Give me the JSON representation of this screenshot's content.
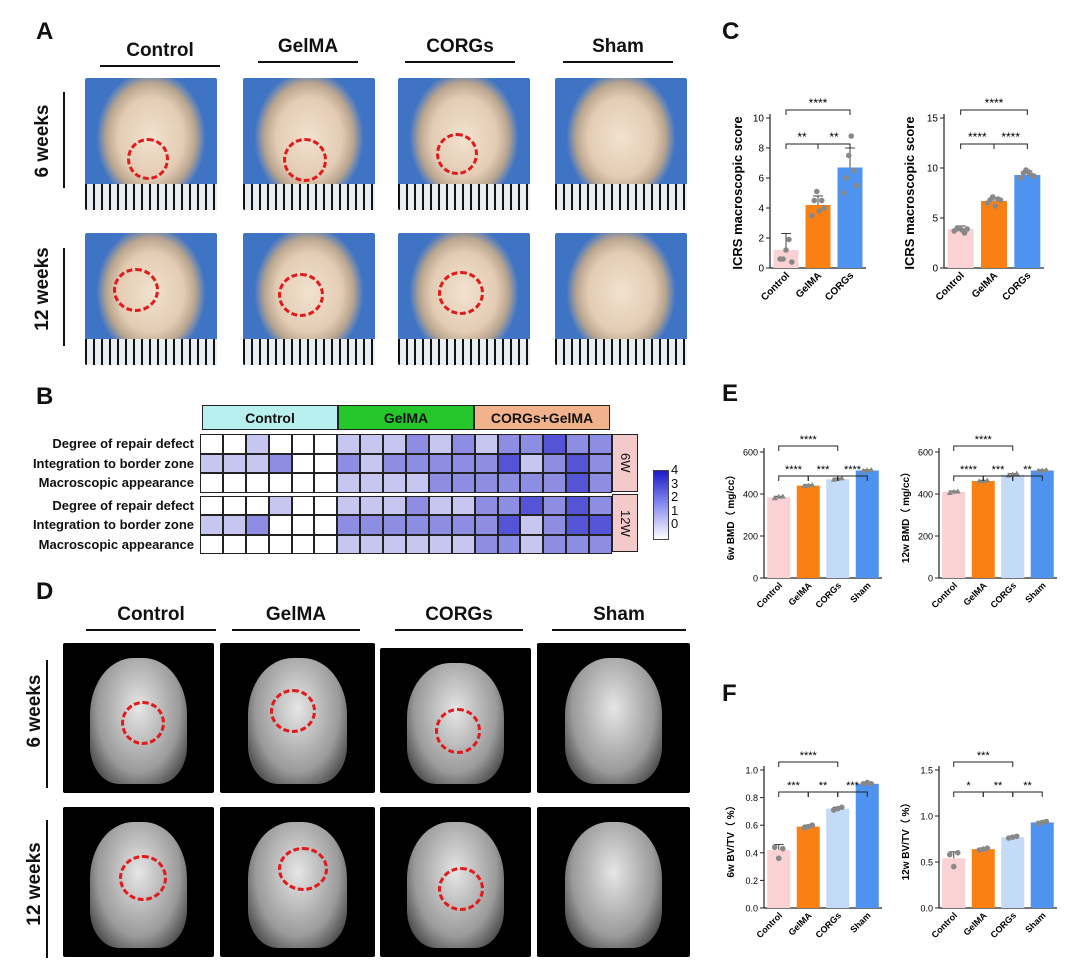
{
  "panels": {
    "a": "A",
    "b": "B",
    "c": "C",
    "d": "D",
    "e": "E",
    "f": "F"
  },
  "groups": [
    "Control",
    "GelMA",
    "CORGs",
    "Sham"
  ],
  "timepoints": [
    "6 weeks",
    "12 weeks"
  ],
  "heatmap": {
    "groups": [
      "Control",
      "GelMA",
      "CORGs+GelMA"
    ],
    "group_colors": [
      "#b7f0ee",
      "#25c72a",
      "#f2b28c"
    ],
    "rows": [
      "Degree of repair defect",
      "Integration to border zone",
      "Macroscopic appearance",
      "Degree of repair defect",
      "Integration to border zone",
      "Macroscopic appearance"
    ],
    "blocks": [
      "6W",
      "12W"
    ],
    "legend_ticks": [
      "4",
      "3",
      "2",
      "1",
      "0"
    ],
    "values": [
      [
        0,
        0,
        1,
        0,
        0,
        0,
        1,
        1,
        1,
        2,
        1,
        2,
        1,
        2,
        2,
        3,
        2,
        2
      ],
      [
        1,
        1,
        1,
        2,
        0,
        0,
        2,
        1,
        2,
        2,
        2,
        2,
        2,
        3,
        1,
        2,
        3,
        2
      ],
      [
        0,
        0,
        0,
        0,
        0,
        0,
        1,
        1,
        1,
        1,
        2,
        2,
        2,
        2,
        2,
        2,
        3,
        2
      ],
      [
        0,
        0,
        0,
        1,
        0,
        0,
        1,
        1,
        1,
        2,
        1,
        1,
        2,
        2,
        3,
        2,
        3,
        2
      ],
      [
        1,
        1,
        2,
        0,
        0,
        0,
        2,
        2,
        2,
        2,
        2,
        2,
        2,
        3,
        1,
        2,
        3,
        3
      ],
      [
        0,
        0,
        0,
        0,
        0,
        0,
        1,
        1,
        1,
        1,
        1,
        1,
        2,
        2,
        1,
        2,
        2,
        2
      ]
    ]
  },
  "chart_data": [
    {
      "id": "c1",
      "type": "bar",
      "categories": [
        "Control",
        "GelMA",
        "CORGs"
      ],
      "values": [
        1.2,
        4.2,
        6.7
      ],
      "errors": [
        1.1,
        0.6,
        1.3
      ],
      "points": [
        [
          0.6,
          0.6,
          1.2,
          1.9,
          0.4
        ],
        [
          3.5,
          4.5,
          5.1,
          3.8,
          4.5,
          4.0
        ],
        [
          5.0,
          6.0,
          7.5,
          8.8,
          6.5,
          5.5
        ]
      ],
      "colors": [
        "#fbd2d4",
        "#fb8013",
        "#4f93f0"
      ],
      "ylabel": "ICRS macroscopic score",
      "ylim": [
        0,
        10
      ],
      "yticks": [
        0,
        2,
        4,
        6,
        8,
        10
      ],
      "sig": [
        {
          "a": 0,
          "b": 1,
          "label": "**",
          "level": 1
        },
        {
          "a": 1,
          "b": 2,
          "label": "**",
          "level": 1
        },
        {
          "a": 0,
          "b": 2,
          "label": "****",
          "level": 2
        }
      ]
    },
    {
      "id": "c2",
      "type": "bar",
      "categories": [
        "Control",
        "GelMA",
        "CORGs"
      ],
      "values": [
        3.9,
        6.7,
        9.3
      ],
      "errors": [
        0.3,
        0.3,
        0.4
      ],
      "points": [
        [
          3.7,
          3.9,
          4.0,
          3.8,
          3.5,
          3.9
        ],
        [
          6.5,
          6.8,
          7.1,
          6.2,
          6.9,
          6.8
        ],
        [
          9.0,
          9.5,
          9.8,
          9.6,
          9.3,
          9.2
        ]
      ],
      "colors": [
        "#fbd2d4",
        "#fb8013",
        "#4f93f0"
      ],
      "ylabel": "ICRS macroscopic score",
      "ylim": [
        0,
        15
      ],
      "yticks": [
        0,
        5,
        10,
        15
      ],
      "sig": [
        {
          "a": 0,
          "b": 1,
          "label": "****",
          "level": 1
        },
        {
          "a": 1,
          "b": 2,
          "label": "****",
          "level": 1
        },
        {
          "a": 0,
          "b": 2,
          "label": "****",
          "level": 2
        }
      ]
    },
    {
      "id": "e1",
      "type": "bar",
      "categories": [
        "Control",
        "GelMA",
        "CORGs",
        "Sham"
      ],
      "values": [
        385,
        440,
        470,
        512
      ],
      "errors": [
        4,
        4,
        5,
        3
      ],
      "points": [
        [
          380,
          387,
          388
        ],
        [
          438,
          441,
          442
        ],
        [
          468,
          472,
          475
        ],
        [
          510,
          513,
          514
        ]
      ],
      "colors": [
        "#fbd2d4",
        "#fb8013",
        "#c4dbf8",
        "#4f93f0"
      ],
      "ylabel": "6w BMD（ mg/cc）",
      "ylim": [
        0,
        600
      ],
      "yticks": [
        0,
        200,
        400,
        600
      ],
      "sig": [
        {
          "a": 0,
          "b": 1,
          "label": "****",
          "level": 1
        },
        {
          "a": 1,
          "b": 2,
          "label": "***",
          "level": 1
        },
        {
          "a": 2,
          "b": 3,
          "label": "****",
          "level": 1
        },
        {
          "a": 0,
          "b": 2,
          "label": "****",
          "level": 2
        }
      ]
    },
    {
      "id": "e2",
      "type": "bar",
      "categories": [
        "Control",
        "GelMA",
        "CORGs",
        "Sham"
      ],
      "values": [
        410,
        462,
        492,
        512
      ],
      "errors": [
        4,
        3,
        5,
        3
      ],
      "points": [
        [
          405,
          411,
          412
        ],
        [
          460,
          462,
          464
        ],
        [
          488,
          493,
          497
        ],
        [
          510,
          512,
          514
        ]
      ],
      "colors": [
        "#fbd2d4",
        "#fb8013",
        "#c4dbf8",
        "#4f93f0"
      ],
      "ylabel": "12w BMD（ mg/cc）",
      "ylim": [
        0,
        600
      ],
      "yticks": [
        0,
        200,
        400,
        600
      ],
      "sig": [
        {
          "a": 0,
          "b": 1,
          "label": "****",
          "level": 1
        },
        {
          "a": 1,
          "b": 2,
          "label": "***",
          "level": 1
        },
        {
          "a": 2,
          "b": 3,
          "label": "**",
          "level": 1
        },
        {
          "a": 0,
          "b": 2,
          "label": "****",
          "level": 2
        }
      ]
    },
    {
      "id": "f1",
      "type": "bar",
      "categories": [
        "Control",
        "GelMA",
        "CORGs",
        "Sham"
      ],
      "values": [
        0.42,
        0.59,
        0.72,
        0.9
      ],
      "errors": [
        0.04,
        0.01,
        0.01,
        0.01
      ],
      "points": [
        [
          0.44,
          0.36,
          0.43
        ],
        [
          0.58,
          0.59,
          0.6
        ],
        [
          0.71,
          0.72,
          0.73
        ],
        [
          0.9,
          0.91,
          0.9
        ]
      ],
      "colors": [
        "#fbd2d4",
        "#fb8013",
        "#c4dbf8",
        "#4f93f0"
      ],
      "ylabel": "6w BV/TV（ %）",
      "ylim": [
        0,
        1.0
      ],
      "yticks": [
        0,
        0.2,
        0.4,
        0.6,
        0.8,
        1.0
      ],
      "ytick_labels": [
        "0.0",
        "0.2",
        "0.4",
        "0.6",
        "0.8",
        "1.0"
      ],
      "sig": [
        {
          "a": 0,
          "b": 1,
          "label": "***",
          "level": 1
        },
        {
          "a": 1,
          "b": 2,
          "label": "**",
          "level": 1
        },
        {
          "a": 2,
          "b": 3,
          "label": "***",
          "level": 1
        },
        {
          "a": 0,
          "b": 2,
          "label": "****",
          "level": 2
        }
      ]
    },
    {
      "id": "f2",
      "type": "bar",
      "categories": [
        "Control",
        "GelMA",
        "CORGs",
        "Sham"
      ],
      "values": [
        0.54,
        0.64,
        0.77,
        0.93
      ],
      "errors": [
        0.07,
        0.01,
        0.01,
        0.01
      ],
      "points": [
        [
          0.58,
          0.45,
          0.6
        ],
        [
          0.63,
          0.64,
          0.65
        ],
        [
          0.76,
          0.77,
          0.78
        ],
        [
          0.92,
          0.93,
          0.94
        ]
      ],
      "colors": [
        "#fbd2d4",
        "#fb8013",
        "#c4dbf8",
        "#4f93f0"
      ],
      "ylabel": "12w BV/TV（ %）",
      "ylim": [
        0,
        1.5
      ],
      "yticks": [
        0,
        0.5,
        1.0,
        1.5
      ],
      "ytick_labels": [
        "0.0",
        "0.5",
        "1.0",
        "1.5"
      ],
      "sig": [
        {
          "a": 0,
          "b": 1,
          "label": "*",
          "level": 1
        },
        {
          "a": 1,
          "b": 2,
          "label": "**",
          "level": 1
        },
        {
          "a": 2,
          "b": 3,
          "label": "**",
          "level": 1
        },
        {
          "a": 0,
          "b": 2,
          "label": "***",
          "level": 2
        }
      ]
    }
  ]
}
